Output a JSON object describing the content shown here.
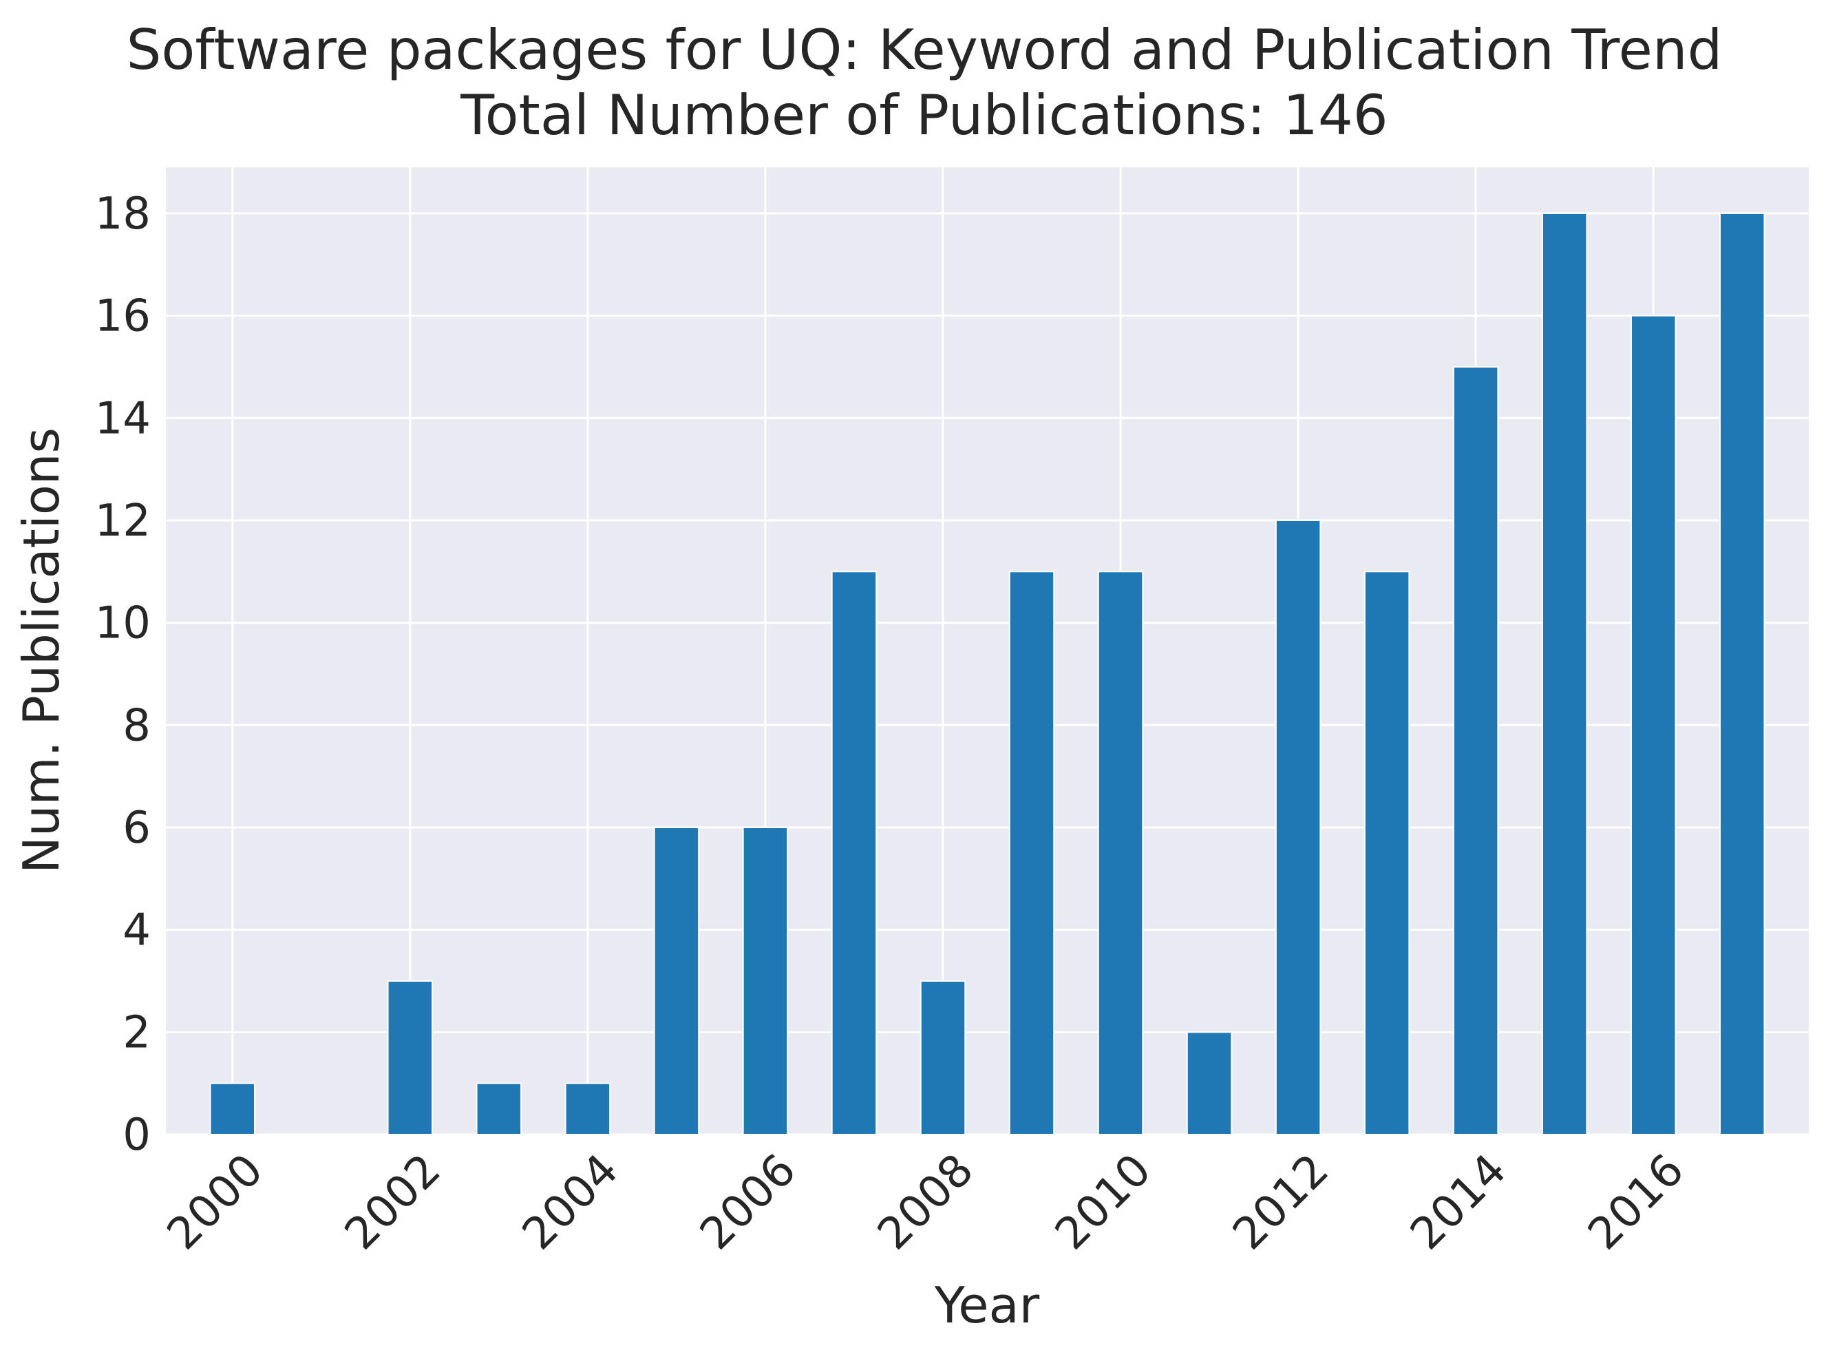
{
  "chart_data": {
    "type": "bar",
    "title": "Software packages for UQ: Keyword and Publication Trend",
    "subtitle": "Total Number of Publications: 146",
    "xlabel": "Year",
    "ylabel": "Num. Publications",
    "categories": [
      2000,
      2001,
      2002,
      2003,
      2004,
      2005,
      2006,
      2007,
      2008,
      2009,
      2010,
      2011,
      2012,
      2013,
      2014,
      2015,
      2016,
      2017
    ],
    "values": [
      1,
      0,
      3,
      1,
      1,
      6,
      6,
      11,
      3,
      11,
      11,
      2,
      12,
      11,
      15,
      18,
      16,
      18
    ],
    "x_tick_labels": [
      "2000",
      "2002",
      "2004",
      "2006",
      "2008",
      "2010",
      "2012",
      "2014",
      "2016"
    ],
    "y_tick_labels": [
      "0",
      "2",
      "4",
      "6",
      "8",
      "10",
      "12",
      "14",
      "16",
      "18"
    ],
    "ylim": [
      0,
      18.9
    ],
    "grid": true,
    "legend": "none",
    "colors": {
      "bar": "#1f77b4",
      "plot_background": "#eaeaf2",
      "grid": "#ffffff",
      "text": "#262626"
    }
  }
}
